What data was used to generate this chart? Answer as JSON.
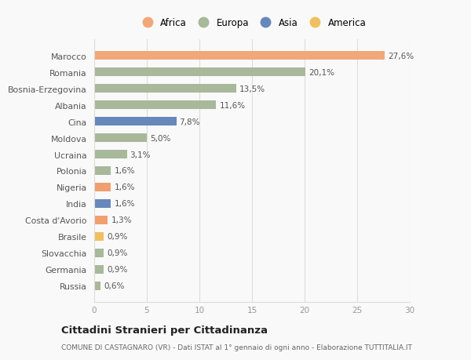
{
  "countries": [
    "Russia",
    "Germania",
    "Slovacchia",
    "Brasile",
    "Costa d'Avorio",
    "India",
    "Nigeria",
    "Polonia",
    "Ucraina",
    "Moldova",
    "Cina",
    "Albania",
    "Bosnia-Erzegovina",
    "Romania",
    "Marocco"
  ],
  "values": [
    0.6,
    0.9,
    0.9,
    0.9,
    1.3,
    1.6,
    1.6,
    1.6,
    3.1,
    5.0,
    7.8,
    11.6,
    13.5,
    20.1,
    27.6
  ],
  "labels": [
    "0,6%",
    "0,9%",
    "0,9%",
    "0,9%",
    "1,3%",
    "1,6%",
    "1,6%",
    "1,6%",
    "3,1%",
    "5,0%",
    "7,8%",
    "11,6%",
    "13,5%",
    "20,1%",
    "27,6%"
  ],
  "bar_colors_list": [
    "#a8b89a",
    "#a8b89a",
    "#a8b89a",
    "#f0c060",
    "#f0a070",
    "#6688bb",
    "#f0a070",
    "#a8b89a",
    "#a8b89a",
    "#a8b89a",
    "#6688bb",
    "#a8b89a",
    "#a8b89a",
    "#a8b89a",
    "#f0a878"
  ],
  "legend_labels": [
    "Africa",
    "Europa",
    "Asia",
    "America"
  ],
  "legend_colors": [
    "#f0a878",
    "#a8b89a",
    "#6688bb",
    "#f0c060"
  ],
  "title": "Cittadini Stranieri per Cittadinanza",
  "subtitle": "COMUNE DI CASTAGNARO (VR) - Dati ISTAT al 1° gennaio di ogni anno - Elaborazione TUTTITALIA.IT",
  "xlim": [
    0,
    30
  ],
  "xticks": [
    0,
    5,
    10,
    15,
    20,
    25,
    30
  ],
  "background_color": "#f9f9f9",
  "grid_color": "#dddddd",
  "label_color": "#555555",
  "tick_color": "#999999"
}
